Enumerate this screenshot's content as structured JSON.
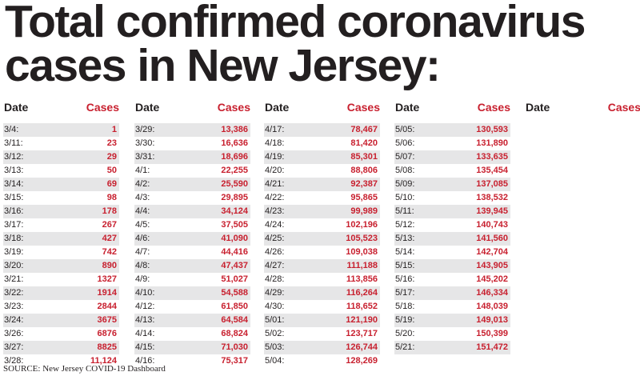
{
  "title_line1": "Total confirmed coronavirus",
  "title_line2": "cases in New Jersey:",
  "header_date": "Date",
  "header_cases": "Cases",
  "source": "SOURCE: New Jersey COVID-19 Dashboard",
  "colors": {
    "accent": "#c8202f",
    "text": "#231f20",
    "stripe": "#e6e6e7"
  },
  "columns": [
    {
      "rows": [
        {
          "date": "3/4:",
          "cases": "1"
        },
        {
          "date": "3/11:",
          "cases": "23"
        },
        {
          "date": "3/12:",
          "cases": "29"
        },
        {
          "date": "3/13:",
          "cases": "50"
        },
        {
          "date": "3/14:",
          "cases": "69"
        },
        {
          "date": "3/15:",
          "cases": "98"
        },
        {
          "date": "3/16:",
          "cases": "178"
        },
        {
          "date": "3/17:",
          "cases": "267"
        },
        {
          "date": "3/18:",
          "cases": "427"
        },
        {
          "date": "3/19:",
          "cases": "742"
        },
        {
          "date": "3/20:",
          "cases": "890"
        },
        {
          "date": "3/21:",
          "cases": "1327"
        },
        {
          "date": "3/22:",
          "cases": "1914"
        },
        {
          "date": "3/23:",
          "cases": "2844"
        },
        {
          "date": "3/24:",
          "cases": "3675"
        },
        {
          "date": "3/26:",
          "cases": "6876"
        },
        {
          "date": "3/27:",
          "cases": "8825"
        },
        {
          "date": "3/28:",
          "cases": "11,124"
        }
      ]
    },
    {
      "rows": [
        {
          "date": "3/29:",
          "cases": "13,386"
        },
        {
          "date": "3/30:",
          "cases": "16,636"
        },
        {
          "date": "3/31:",
          "cases": "18,696"
        },
        {
          "date": "4/1:",
          "cases": "22,255"
        },
        {
          "date": "4/2:",
          "cases": "25,590"
        },
        {
          "date": "4/3:",
          "cases": "29,895"
        },
        {
          "date": "4/4:",
          "cases": "34,124"
        },
        {
          "date": "4/5:",
          "cases": "37,505"
        },
        {
          "date": "4/6:",
          "cases": "41,090"
        },
        {
          "date": "4/7:",
          "cases": "44,416"
        },
        {
          "date": "4/8:",
          "cases": "47,437"
        },
        {
          "date": "4/9:",
          "cases": "51,027"
        },
        {
          "date": "4/10:",
          "cases": "54,588"
        },
        {
          "date": "4/12:",
          "cases": "61,850"
        },
        {
          "date": "4/13:",
          "cases": "64,584"
        },
        {
          "date": "4/14:",
          "cases": "68,824"
        },
        {
          "date": "4/15:",
          "cases": "71,030"
        },
        {
          "date": "4/16:",
          "cases": "75,317"
        }
      ]
    },
    {
      "rows": [
        {
          "date": "4/17:",
          "cases": "78,467"
        },
        {
          "date": "4/18:",
          "cases": "81,420"
        },
        {
          "date": "4/19:",
          "cases": "85,301"
        },
        {
          "date": "4/20:",
          "cases": "88,806"
        },
        {
          "date": "4/21:",
          "cases": "92,387"
        },
        {
          "date": "4/22:",
          "cases": "95,865"
        },
        {
          "date": "4/23:",
          "cases": "99,989"
        },
        {
          "date": "4/24:",
          "cases": "102,196"
        },
        {
          "date": "4/25:",
          "cases": "105,523"
        },
        {
          "date": "4/26:",
          "cases": "109,038"
        },
        {
          "date": "4/27:",
          "cases": "111,188"
        },
        {
          "date": "4/28:",
          "cases": "113,856"
        },
        {
          "date": "4/29:",
          "cases": "116,264"
        },
        {
          "date": "4/30:",
          "cases": "118,652"
        },
        {
          "date": "5/01:",
          "cases": "121,190"
        },
        {
          "date": "5/02:",
          "cases": "123,717"
        },
        {
          "date": "5/03:",
          "cases": "126,744"
        },
        {
          "date": "5/04:",
          "cases": "128,269"
        }
      ]
    },
    {
      "rows": [
        {
          "date": "5/05:",
          "cases": "130,593"
        },
        {
          "date": "5/06:",
          "cases": "131,890"
        },
        {
          "date": "5/07:",
          "cases": "133,635"
        },
        {
          "date": "5/08:",
          "cases": "135,454"
        },
        {
          "date": "5/09:",
          "cases": "137,085"
        },
        {
          "date": "5/10:",
          "cases": "138,532"
        },
        {
          "date": "5/11:",
          "cases": "139,945"
        },
        {
          "date": "5/12:",
          "cases": "140,743"
        },
        {
          "date": "5/13:",
          "cases": "141,560"
        },
        {
          "date": "5/14:",
          "cases": "142,704"
        },
        {
          "date": "5/15:",
          "cases": "143,905"
        },
        {
          "date": "5/16:",
          "cases": "145,202"
        },
        {
          "date": "5/17:",
          "cases": "146,334"
        },
        {
          "date": "5/18:",
          "cases": "148,039"
        },
        {
          "date": "5/19:",
          "cases": "149,013"
        },
        {
          "date": "5/20:",
          "cases": "150,399"
        },
        {
          "date": "5/21:",
          "cases": "151,472"
        }
      ]
    },
    {
      "rows": []
    }
  ]
}
